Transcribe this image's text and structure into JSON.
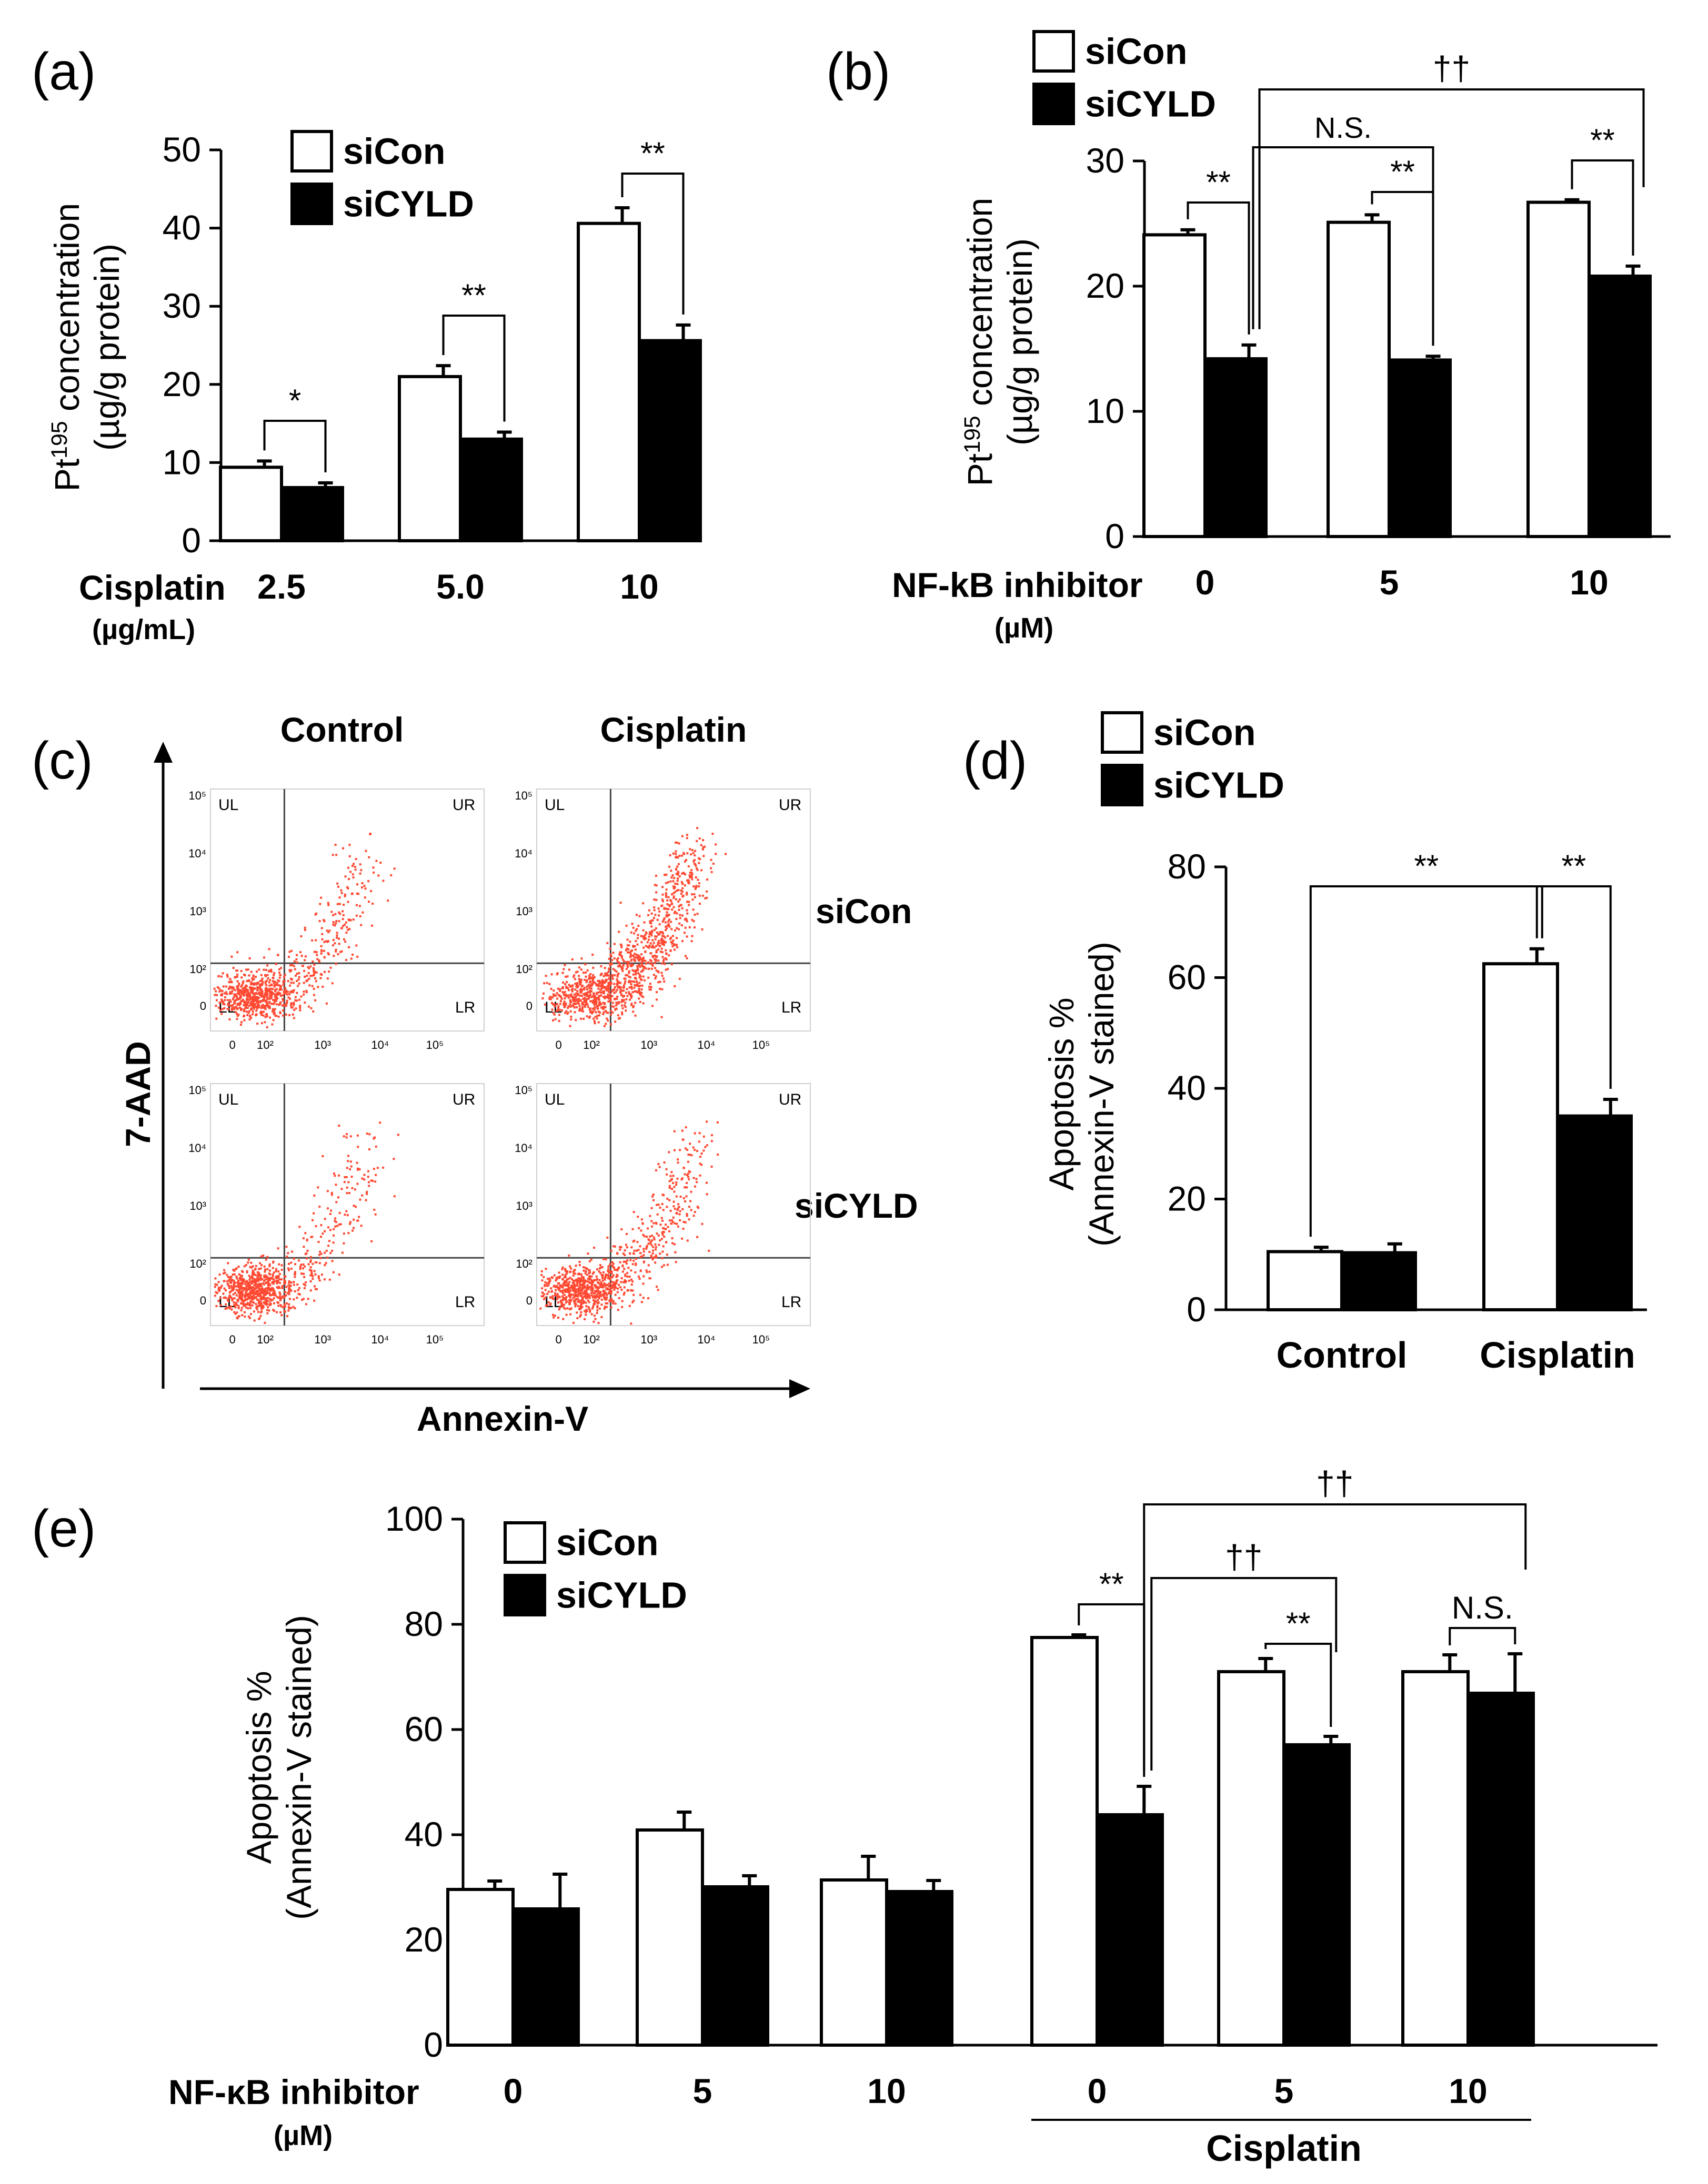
{
  "panel_labels": {
    "a": "(a)",
    "b": "(b)",
    "c": "(c)",
    "d": "(d)",
    "e": "(e)"
  },
  "legend": {
    "sicon": "siCon",
    "sicyld": "siCYLD"
  },
  "colors": {
    "sicon_fill": "#ffffff",
    "sicyld_fill": "#000000",
    "dots": "#ff4a33",
    "stroke": "#000000"
  },
  "chart_data": [
    {
      "id": "a",
      "type": "bar",
      "ylabel_main": "Pt",
      "ylabel_sup": "195",
      "ylabel_rest": " concentration",
      "ylabel_line2": "(µg/g protein)",
      "xlabel": "Cisplatin",
      "xunit": "(µg/mL)",
      "categories": [
        "2.5",
        "5.0",
        "10"
      ],
      "series": [
        {
          "name": "siCon",
          "values": [
            9.4,
            21.0,
            40.6
          ],
          "err": [
            0.8,
            1.4,
            2.0
          ]
        },
        {
          "name": "siCYLD",
          "values": [
            6.8,
            13.0,
            25.6
          ],
          "err": [
            0.6,
            0.9,
            2.0
          ]
        }
      ],
      "ylim": [
        0,
        50
      ],
      "yticks": [
        "0",
        "10",
        "20",
        "30",
        "40",
        "50"
      ],
      "annotations": [
        "*",
        "**",
        "**"
      ]
    },
    {
      "id": "b",
      "type": "bar",
      "ylabel_main": "Pt",
      "ylabel_sup": "195",
      "ylabel_rest": " concentration",
      "ylabel_line2": "(µg/g protein)",
      "xlabel": "NF-kB inhibitor",
      "xunit": "(µM)",
      "categories": [
        "0",
        "5",
        "10"
      ],
      "series": [
        {
          "name": "siCon",
          "values": [
            24.1,
            25.1,
            26.7
          ],
          "err": [
            0.4,
            0.6,
            0.2
          ]
        },
        {
          "name": "siCYLD",
          "values": [
            14.2,
            14.1,
            20.8
          ],
          "err": [
            1.1,
            0.3,
            0.8
          ]
        }
      ],
      "ylim": [
        0,
        30
      ],
      "yticks": [
        "0",
        "10",
        "20",
        "30"
      ],
      "annotations": [
        "**",
        "**",
        "**",
        "N.S.",
        "††"
      ]
    },
    {
      "id": "d",
      "type": "bar",
      "ylabel": "Apoptosis %",
      "ylabel_line2": "(Annexin-V stained)",
      "categories": [
        "Control",
        "Cisplatin"
      ],
      "series": [
        {
          "name": "siCon",
          "values": [
            10.5,
            62.5
          ],
          "err": [
            0.8,
            2.7
          ]
        },
        {
          "name": "siCYLD",
          "values": [
            10.3,
            35.0
          ],
          "err": [
            1.6,
            3.0
          ]
        }
      ],
      "ylim": [
        0,
        80
      ],
      "yticks": [
        "0",
        "20",
        "40",
        "60",
        "80"
      ],
      "annotations": [
        "**",
        "**"
      ]
    },
    {
      "id": "e",
      "type": "bar",
      "ylabel": "Apoptosis %",
      "ylabel_line2": "(Annexin-V stained)",
      "xlabel": "NF-κB inhibitor",
      "xunit": "(µM)",
      "categories": [
        "0",
        "5",
        "10",
        "0",
        "5",
        "10"
      ],
      "group_label": "Cisplatin",
      "series": [
        {
          "name": "siCon",
          "values": [
            29.6,
            40.9,
            31.4,
            77.5,
            71.0,
            71.0
          ],
          "err": [
            1.6,
            3.4,
            4.5,
            0.5,
            2.5,
            3.2
          ]
        },
        {
          "name": "siCYLD",
          "values": [
            25.9,
            30.1,
            29.2,
            43.8,
            57.1,
            66.9
          ],
          "err": [
            6.6,
            2.1,
            2.1,
            5.4,
            1.6,
            7.5
          ]
        }
      ],
      "ylim": [
        0,
        100
      ],
      "yticks": [
        "0",
        "20",
        "40",
        "60",
        "80",
        "100"
      ],
      "annotations": [
        "**",
        "**",
        "N.S.",
        "††",
        "††"
      ]
    }
  ],
  "flow": {
    "yaxis": "7-AAD",
    "xaxis": "Annexin-V",
    "columns": [
      "Control",
      "Cisplatin"
    ],
    "rows": [
      "siCon",
      "siCYLD"
    ],
    "quadrants": [
      "UL",
      "UR",
      "LL",
      "LR"
    ],
    "yticks": [
      "0",
      "10²",
      "10³",
      "10⁴",
      "10⁵"
    ],
    "xticks": [
      "0",
      "10²",
      "10³",
      "10⁴",
      "10⁵"
    ]
  }
}
